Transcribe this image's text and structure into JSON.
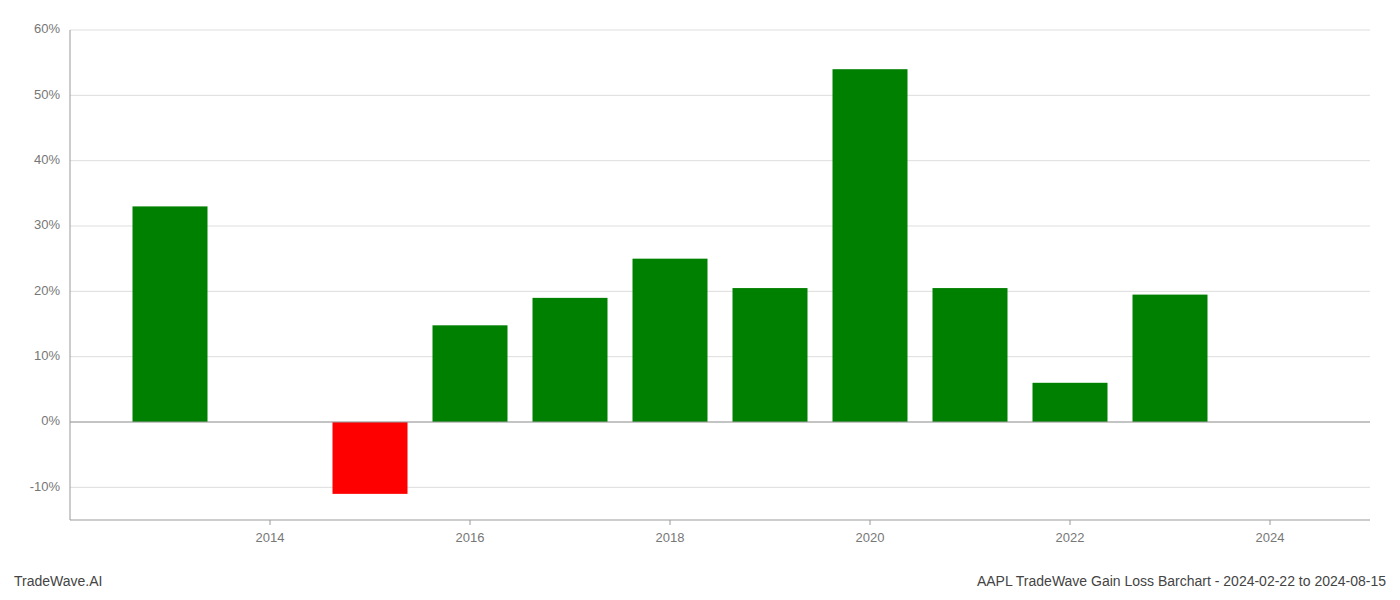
{
  "chart_data": {
    "type": "bar",
    "title": "AAPL TradeWave Gain Loss Barchart - 2024-02-22 to 2024-08-15",
    "annotations": [
      "TradeWave.AI"
    ],
    "x": [
      2013,
      2015,
      2016,
      2017,
      2018,
      2019,
      2020,
      2021,
      2022,
      2023
    ],
    "values": [
      33.0,
      -11.0,
      14.8,
      19.0,
      25.0,
      20.5,
      54.0,
      20.5,
      6.0,
      19.5
    ],
    "colors": [
      "#008000",
      "#ff0000",
      "#008000",
      "#008000",
      "#008000",
      "#008000",
      "#008000",
      "#008000",
      "#008000",
      "#008000"
    ],
    "xlim": [
      2012.0,
      2025.0
    ],
    "xticks": [
      2014,
      2016,
      2018,
      2020,
      2022,
      2024
    ],
    "ylim": [
      -15,
      60
    ],
    "yticks": [
      {
        "value": -10,
        "label": "-10%"
      },
      {
        "value": 0,
        "label": "0%"
      },
      {
        "value": 10,
        "label": "10%"
      },
      {
        "value": 20,
        "label": "20%"
      },
      {
        "value": 30,
        "label": "30%"
      },
      {
        "value": 40,
        "label": "40%"
      },
      {
        "value": 50,
        "label": "50%"
      },
      {
        "value": 60,
        "label": "60%"
      }
    ],
    "grid": true
  }
}
